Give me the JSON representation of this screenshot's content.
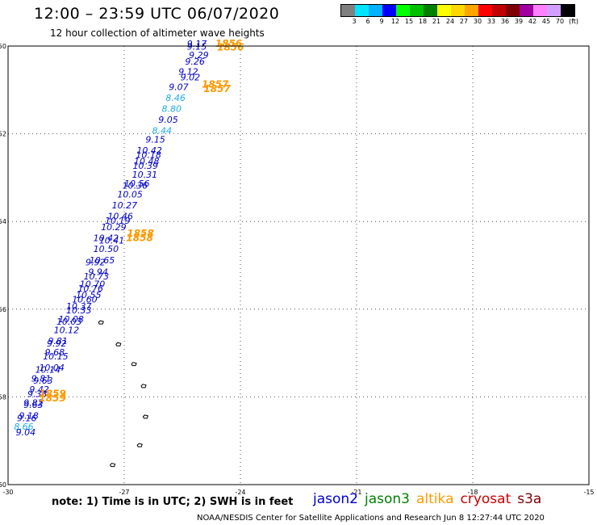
{
  "header": {
    "title": "12:00 – 23:59 UTC 06/07/2020",
    "subtitle": "12 hour collection of altimeter wave heights"
  },
  "colorbar": {
    "swatches": [
      "#808080",
      "#00e5ff",
      "#00b2ff",
      "#0000ff",
      "#00ff00",
      "#00c000",
      "#008000",
      "#ffff00",
      "#ffd700",
      "#ffa500",
      "#ff0000",
      "#c00000",
      "#800000",
      "#a000a0",
      "#ff80ff",
      "#d0a0ff",
      "#000000"
    ],
    "labels": [
      "3",
      "6",
      "9",
      "12",
      "15",
      "18",
      "21",
      "24",
      "27",
      "30",
      "33",
      "36",
      "39",
      "42",
      "45",
      "70",
      "(ft)"
    ]
  },
  "axes": {
    "x_ticks": [
      "-30",
      "-27",
      "-24",
      "-21",
      "-18",
      "-15"
    ],
    "y_ticks": [
      "-50",
      "-52",
      "-54",
      "-56",
      "-58",
      "-60"
    ]
  },
  "chart_data": {
    "type": "scatter",
    "x_range": [
      -30,
      -15
    ],
    "y_range": [
      -60,
      -50
    ],
    "grid": true,
    "swh_labels": [
      {
        "lon": -25.38,
        "lat": -50.02,
        "value": "9.17",
        "color": "#0000cc"
      },
      {
        "lon": -25.38,
        "lat": -50.08,
        "value": "9.15",
        "color": "#0000cc"
      },
      {
        "lon": -25.33,
        "lat": -50.28,
        "value": "9.29",
        "color": "#0000cc"
      },
      {
        "lon": -25.43,
        "lat": -50.42,
        "value": "9.26",
        "color": "#0000cc"
      },
      {
        "lon": -25.6,
        "lat": -50.65,
        "value": "9.12",
        "color": "#0000cc"
      },
      {
        "lon": -25.55,
        "lat": -50.78,
        "value": "9.02",
        "color": "#0000cc"
      },
      {
        "lon": -25.85,
        "lat": -51.0,
        "value": "9.07",
        "color": "#0000cc"
      },
      {
        "lon": -25.93,
        "lat": -51.25,
        "value": "8.46",
        "color": "#1eaee6"
      },
      {
        "lon": -26.03,
        "lat": -51.5,
        "value": "8.80",
        "color": "#1eaee6"
      },
      {
        "lon": -26.12,
        "lat": -51.75,
        "value": "9.05",
        "color": "#0000cc"
      },
      {
        "lon": -26.28,
        "lat": -52.0,
        "value": "8.44",
        "color": "#1eaee6"
      },
      {
        "lon": -26.45,
        "lat": -52.2,
        "value": "9.15",
        "color": "#0000cc"
      },
      {
        "lon": -26.68,
        "lat": -52.45,
        "value": "10.42",
        "color": "#0000cc"
      },
      {
        "lon": -26.7,
        "lat": -52.55,
        "value": "10.18",
        "color": "#0000cc"
      },
      {
        "lon": -26.75,
        "lat": -52.7,
        "value": "10.48",
        "color": "#0000cc"
      },
      {
        "lon": -26.78,
        "lat": -52.8,
        "value": "10.39",
        "color": "#0000cc"
      },
      {
        "lon": -26.8,
        "lat": -53.0,
        "value": "10.31",
        "color": "#0000cc"
      },
      {
        "lon": -27.0,
        "lat": -53.2,
        "value": "10.56",
        "color": "#0000cc"
      },
      {
        "lon": -27.05,
        "lat": -53.25,
        "value": "10.36",
        "color": "#0000cc"
      },
      {
        "lon": -27.18,
        "lat": -53.45,
        "value": "10.05",
        "color": "#0000cc"
      },
      {
        "lon": -27.32,
        "lat": -53.7,
        "value": "10.27",
        "color": "#0000cc"
      },
      {
        "lon": -27.43,
        "lat": -53.95,
        "value": "10.46",
        "color": "#0000cc"
      },
      {
        "lon": -27.5,
        "lat": -54.05,
        "value": "10.19",
        "color": "#0000cc"
      },
      {
        "lon": -27.6,
        "lat": -54.2,
        "value": "10.29",
        "color": "#0000cc"
      },
      {
        "lon": -27.8,
        "lat": -54.45,
        "value": "10.42",
        "color": "#0000cc"
      },
      {
        "lon": -27.65,
        "lat": -54.5,
        "value": "10.41",
        "color": "#0000cc"
      },
      {
        "lon": -27.8,
        "lat": -54.7,
        "value": "10.50",
        "color": "#0000cc"
      },
      {
        "lon": -27.9,
        "lat": -54.95,
        "value": "10.65",
        "color": "#0000cc"
      },
      {
        "lon": -28.0,
        "lat": -55.0,
        "value": "9.92",
        "color": "#0000cc"
      },
      {
        "lon": -27.93,
        "lat": -55.22,
        "value": "9.94",
        "color": "#0000cc"
      },
      {
        "lon": -28.05,
        "lat": -55.32,
        "value": "10.73",
        "color": "#0000cc"
      },
      {
        "lon": -28.15,
        "lat": -55.5,
        "value": "10.70",
        "color": "#0000cc"
      },
      {
        "lon": -28.2,
        "lat": -55.6,
        "value": "10.76",
        "color": "#0000cc"
      },
      {
        "lon": -28.25,
        "lat": -55.75,
        "value": "10.55",
        "color": "#0000cc"
      },
      {
        "lon": -28.35,
        "lat": -55.85,
        "value": "10.60",
        "color": "#0000cc"
      },
      {
        "lon": -28.5,
        "lat": -56.0,
        "value": "10.37",
        "color": "#0000cc"
      },
      {
        "lon": -28.5,
        "lat": -56.1,
        "value": "10.33",
        "color": "#0000cc"
      },
      {
        "lon": -28.7,
        "lat": -56.3,
        "value": "10.08",
        "color": "#0000cc"
      },
      {
        "lon": -28.75,
        "lat": -56.35,
        "value": "10.03",
        "color": "#0000cc"
      },
      {
        "lon": -28.82,
        "lat": -56.55,
        "value": "10.12",
        "color": "#0000cc"
      },
      {
        "lon": -28.97,
        "lat": -56.8,
        "value": "9.81",
        "color": "#0000cc"
      },
      {
        "lon": -29.0,
        "lat": -56.85,
        "value": "9.92",
        "color": "#0000cc"
      },
      {
        "lon": -29.05,
        "lat": -57.05,
        "value": "9.68",
        "color": "#0000cc"
      },
      {
        "lon": -29.1,
        "lat": -57.15,
        "value": "10.15",
        "color": "#0000cc"
      },
      {
        "lon": -29.2,
        "lat": -57.4,
        "value": "10.04",
        "color": "#0000cc"
      },
      {
        "lon": -29.3,
        "lat": -57.45,
        "value": "10.14",
        "color": "#0000cc"
      },
      {
        "lon": -29.4,
        "lat": -57.65,
        "value": "9.81",
        "color": "#0000cc"
      },
      {
        "lon": -29.35,
        "lat": -57.7,
        "value": "9.63",
        "color": "#0000cc"
      },
      {
        "lon": -29.45,
        "lat": -57.9,
        "value": "9.42",
        "color": "#0000cc"
      },
      {
        "lon": -29.5,
        "lat": -58.0,
        "value": "9.33",
        "color": "#0000cc"
      },
      {
        "lon": -29.6,
        "lat": -58.2,
        "value": "9.82",
        "color": "#0000cc"
      },
      {
        "lon": -29.6,
        "lat": -58.25,
        "value": "9.63",
        "color": "#0000cc"
      },
      {
        "lon": -29.72,
        "lat": -58.5,
        "value": "9.18",
        "color": "#0000cc"
      },
      {
        "lon": -29.77,
        "lat": -58.55,
        "value": "9.16",
        "color": "#0000cc"
      },
      {
        "lon": -29.85,
        "lat": -58.75,
        "value": "8.66",
        "color": "#1eaee6"
      },
      {
        "lon": -29.8,
        "lat": -58.88,
        "value": "9.04",
        "color": "#0000cc"
      }
    ],
    "time_labels": [
      {
        "lon": -24.65,
        "lat": -50.02,
        "value": "1856",
        "color": "#ff9900"
      },
      {
        "lon": -24.6,
        "lat": -50.1,
        "value": "1856",
        "color": "#ff9900"
      },
      {
        "lon": -25.0,
        "lat": -50.95,
        "value": "1857",
        "color": "#ff9900"
      },
      {
        "lon": -24.95,
        "lat": -51.05,
        "value": "1857",
        "color": "#ff9900"
      },
      {
        "lon": -26.93,
        "lat": -54.35,
        "value": "1858",
        "color": "#ff9900"
      },
      {
        "lon": -26.95,
        "lat": -54.45,
        "value": "1858",
        "color": "#ff9900"
      },
      {
        "lon": -29.2,
        "lat": -58.0,
        "value": "1859",
        "color": "#ff9900"
      },
      {
        "lon": -29.2,
        "lat": -58.1,
        "value": "1859",
        "color": "#ff9900"
      }
    ],
    "islands": [
      {
        "lon": -27.6,
        "lat": -56.3
      },
      {
        "lon": -27.15,
        "lat": -56.8
      },
      {
        "lon": -26.75,
        "lat": -57.25
      },
      {
        "lon": -26.5,
        "lat": -57.75
      },
      {
        "lon": -26.45,
        "lat": -58.45
      },
      {
        "lon": -26.6,
        "lat": -59.1
      },
      {
        "lon": -27.3,
        "lat": -59.55
      }
    ]
  },
  "footer": {
    "note": "note: 1) Time is in UTC; 2) SWH is in feet",
    "legend": [
      {
        "label": "jason2",
        "color": "#0000cc"
      },
      {
        "label": "jason3",
        "color": "#008000"
      },
      {
        "label": "altika",
        "color": "#ff9900"
      },
      {
        "label": "cryosat",
        "color": "#cc0000"
      },
      {
        "label": "s3a",
        "color": "#800000"
      }
    ],
    "credit": "NOAA/NESDIS Center for Satellite Applications and Research   Jun  8 12:27:44 UTC 2020"
  }
}
